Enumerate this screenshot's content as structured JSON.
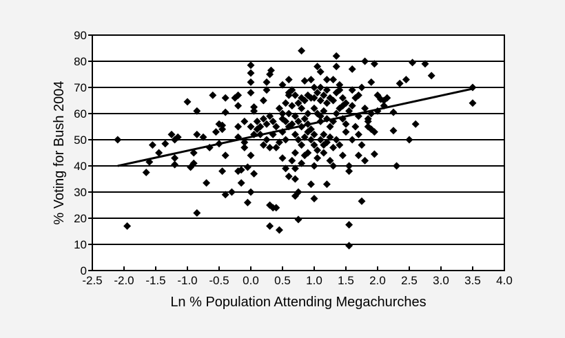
{
  "chart_data": {
    "type": "scatter",
    "title": "",
    "xlabel": "Ln % Population Attending Megachurches",
    "ylabel": "% Voting for Bush 2004",
    "xlim": [
      -2.5,
      4.0
    ],
    "ylim": [
      0,
      90
    ],
    "xticks": [
      "-2.5",
      "-2.0",
      "-1.5",
      "-1.0",
      "-0.5",
      "0.0",
      "0.5",
      "1.0",
      "1.5",
      "2.0",
      "2.5",
      "3.0",
      "3.5",
      "4.0"
    ],
    "yticks": [
      "0",
      "10",
      "20",
      "30",
      "40",
      "50",
      "60",
      "70",
      "80",
      "90"
    ],
    "grid": "horizontal",
    "marker": "diamond",
    "marker_color": "#000000",
    "trendline": {
      "x": [
        -2.1,
        3.5
      ],
      "y": [
        40,
        69.5
      ]
    },
    "points": [
      [
        -2.1,
        50
      ],
      [
        -1.95,
        17
      ],
      [
        -1.55,
        48
      ],
      [
        -1.6,
        41.5
      ],
      [
        -1.65,
        37.5
      ],
      [
        -1.45,
        45
      ],
      [
        -1.35,
        48.5
      ],
      [
        -1.25,
        52
      ],
      [
        -1.2,
        50
      ],
      [
        -1.15,
        51
      ],
      [
        -1.2,
        43
      ],
      [
        -1.2,
        40.5
      ],
      [
        -1.0,
        64.5
      ],
      [
        -0.95,
        39.5
      ],
      [
        -0.9,
        41
      ],
      [
        -0.9,
        45
      ],
      [
        -0.85,
        61
      ],
      [
        -0.85,
        52
      ],
      [
        -0.85,
        22
      ],
      [
        -0.75,
        51
      ],
      [
        -0.7,
        33.5
      ],
      [
        -0.65,
        47
      ],
      [
        -0.55,
        53
      ],
      [
        -0.6,
        67
      ],
      [
        -0.5,
        48.5
      ],
      [
        -0.5,
        56
      ],
      [
        -0.45,
        54
      ],
      [
        -0.45,
        55.5
      ],
      [
        -0.45,
        38
      ],
      [
        -0.4,
        60.5
      ],
      [
        -0.4,
        66
      ],
      [
        -0.4,
        44
      ],
      [
        -0.4,
        29
      ],
      [
        -0.3,
        30
      ],
      [
        -0.25,
        66
      ],
      [
        -0.2,
        55
      ],
      [
        -0.2,
        51
      ],
      [
        -0.2,
        67
      ],
      [
        -0.2,
        63
      ],
      [
        -0.2,
        38
      ],
      [
        -0.15,
        38.5
      ],
      [
        -0.15,
        33.5
      ],
      [
        -0.1,
        57
      ],
      [
        -0.1,
        49
      ],
      [
        -0.1,
        47
      ],
      [
        -0.05,
        39.5
      ],
      [
        -0.05,
        26
      ],
      [
        0,
        72
      ],
      [
        0,
        75.5
      ],
      [
        0,
        78.5
      ],
      [
        0,
        68
      ],
      [
        0,
        55
      ],
      [
        0,
        44
      ],
      [
        0,
        30
      ],
      [
        0.05,
        62.5
      ],
      [
        0.05,
        61
      ],
      [
        0.05,
        52
      ],
      [
        0.05,
        37
      ],
      [
        0.1,
        54
      ],
      [
        0.1,
        57
      ],
      [
        0.15,
        55
      ],
      [
        0.2,
        65
      ],
      [
        0.2,
        48
      ],
      [
        0.25,
        72
      ],
      [
        0.25,
        69
      ],
      [
        0.3,
        75
      ],
      [
        0.32,
        76.5
      ],
      [
        0.3,
        25
      ],
      [
        0.3,
        17
      ],
      [
        0.35,
        24
      ],
      [
        0.4,
        24
      ],
      [
        0.45,
        15.5
      ],
      [
        0.45,
        62
      ],
      [
        0.4,
        47
      ],
      [
        0.35,
        52
      ],
      [
        0.5,
        71
      ],
      [
        0.5,
        60
      ],
      [
        0.5,
        53
      ],
      [
        0.55,
        57
      ],
      [
        0.55,
        50
      ],
      [
        0.6,
        55
      ],
      [
        0.6,
        67
      ],
      [
        0.65,
        63
      ],
      [
        0.65,
        42
      ],
      [
        0.7,
        39
      ],
      [
        0.7,
        35
      ],
      [
        0.7,
        28.5
      ],
      [
        0.75,
        19.5
      ],
      [
        0.75,
        30
      ],
      [
        0.8,
        84
      ],
      [
        0.8,
        66
      ],
      [
        0.8,
        55
      ],
      [
        0.85,
        72.5
      ],
      [
        0.9,
        60
      ],
      [
        0.9,
        45
      ],
      [
        0.95,
        33
      ],
      [
        1.0,
        70
      ],
      [
        1.0,
        52
      ],
      [
        1.0,
        27.5
      ],
      [
        1.05,
        78
      ],
      [
        1.1,
        76
      ],
      [
        1.1,
        65
      ],
      [
        1.1,
        57
      ],
      [
        1.15,
        48
      ],
      [
        1.2,
        64
      ],
      [
        1.2,
        33
      ],
      [
        1.25,
        42
      ],
      [
        1.3,
        73
      ],
      [
        1.35,
        82
      ],
      [
        1.35,
        78
      ],
      [
        1.4,
        69
      ],
      [
        1.45,
        63
      ],
      [
        1.5,
        53
      ],
      [
        1.55,
        40
      ],
      [
        1.55,
        38
      ],
      [
        1.55,
        17.5
      ],
      [
        1.55,
        9.5
      ],
      [
        1.6,
        77
      ],
      [
        1.65,
        66
      ],
      [
        1.7,
        59
      ],
      [
        1.75,
        48
      ],
      [
        1.8,
        80
      ],
      [
        1.75,
        26.5
      ],
      [
        1.85,
        55
      ],
      [
        1.9,
        54
      ],
      [
        1.95,
        44.5
      ],
      [
        1.95,
        79
      ],
      [
        2.0,
        67
      ],
      [
        2.05,
        65.5
      ],
      [
        2.15,
        66
      ],
      [
        2.25,
        60.5
      ],
      [
        2.25,
        53.5
      ],
      [
        2.3,
        40
      ],
      [
        2.35,
        71.5
      ],
      [
        2.45,
        73
      ],
      [
        2.5,
        50
      ],
      [
        2.55,
        79.5
      ],
      [
        2.6,
        56
      ],
      [
        2.75,
        79
      ],
      [
        2.85,
        74.5
      ],
      [
        3.5,
        70
      ],
      [
        3.5,
        64
      ],
      [
        0.6,
        68
      ],
      [
        0.65,
        69
      ],
      [
        0.7,
        67
      ],
      [
        0.75,
        64
      ],
      [
        0.8,
        62
      ],
      [
        0.85,
        58
      ],
      [
        0.9,
        56
      ],
      [
        0.95,
        54
      ],
      [
        1.0,
        62
      ],
      [
        1.05,
        60
      ],
      [
        1.1,
        59
      ],
      [
        1.15,
        61
      ],
      [
        1.2,
        58
      ],
      [
        1.25,
        55
      ],
      [
        1.3,
        57
      ],
      [
        1.35,
        60
      ],
      [
        1.4,
        62
      ],
      [
        1.45,
        58
      ],
      [
        1.5,
        56
      ],
      [
        1.55,
        61
      ],
      [
        1.6,
        63
      ],
      [
        1.65,
        55
      ],
      [
        1.7,
        52
      ],
      [
        0.7,
        52
      ],
      [
        0.75,
        50
      ],
      [
        0.8,
        48
      ],
      [
        0.85,
        51
      ],
      [
        0.9,
        53
      ],
      [
        0.95,
        50
      ],
      [
        1.0,
        48
      ],
      [
        1.05,
        46
      ],
      [
        1.1,
        50
      ],
      [
        1.15,
        52
      ],
      [
        1.2,
        49
      ],
      [
        1.25,
        51
      ],
      [
        1.3,
        47
      ],
      [
        1.35,
        50
      ],
      [
        1.4,
        48
      ],
      [
        0.5,
        58
      ],
      [
        0.55,
        64
      ],
      [
        0.6,
        60
      ],
      [
        0.65,
        56
      ],
      [
        0.7,
        59
      ],
      [
        0.75,
        57
      ],
      [
        0.85,
        65
      ],
      [
        0.9,
        67
      ],
      [
        0.95,
        66
      ],
      [
        1.0,
        66
      ],
      [
        1.05,
        68
      ],
      [
        1.1,
        70
      ],
      [
        1.15,
        67
      ],
      [
        1.2,
        69
      ],
      [
        1.25,
        66
      ],
      [
        1.3,
        65
      ],
      [
        1.35,
        68
      ],
      [
        1.4,
        71
      ],
      [
        1.45,
        66
      ],
      [
        1.5,
        64
      ],
      [
        1.6,
        69
      ],
      [
        1.7,
        67
      ],
      [
        1.8,
        62
      ],
      [
        1.85,
        58
      ],
      [
        1.9,
        60
      ],
      [
        0.2,
        58
      ],
      [
        0.25,
        56
      ],
      [
        0.3,
        59
      ],
      [
        0.35,
        57
      ],
      [
        0.4,
        55
      ],
      [
        0.15,
        52
      ],
      [
        0.25,
        50
      ],
      [
        0.3,
        47
      ],
      [
        0.45,
        49
      ],
      [
        1.0,
        40
      ],
      [
        1.05,
        43
      ],
      [
        1.15,
        45
      ],
      [
        0.8,
        41
      ],
      [
        0.85,
        44
      ],
      [
        1.3,
        40
      ],
      [
        1.45,
        44
      ],
      [
        1.6,
        50
      ],
      [
        1.7,
        44
      ],
      [
        1.8,
        42
      ],
      [
        1.85,
        57
      ],
      [
        1.95,
        53
      ],
      [
        2.0,
        61
      ],
      [
        2.1,
        63
      ],
      [
        1.75,
        70
      ],
      [
        1.9,
        72
      ],
      [
        2.1,
        65
      ],
      [
        1.2,
        73
      ],
      [
        0.95,
        73
      ],
      [
        0.6,
        73
      ],
      [
        0.7,
        45
      ],
      [
        0.5,
        43
      ],
      [
        0.55,
        39
      ],
      [
        0.6,
        36
      ]
    ]
  }
}
